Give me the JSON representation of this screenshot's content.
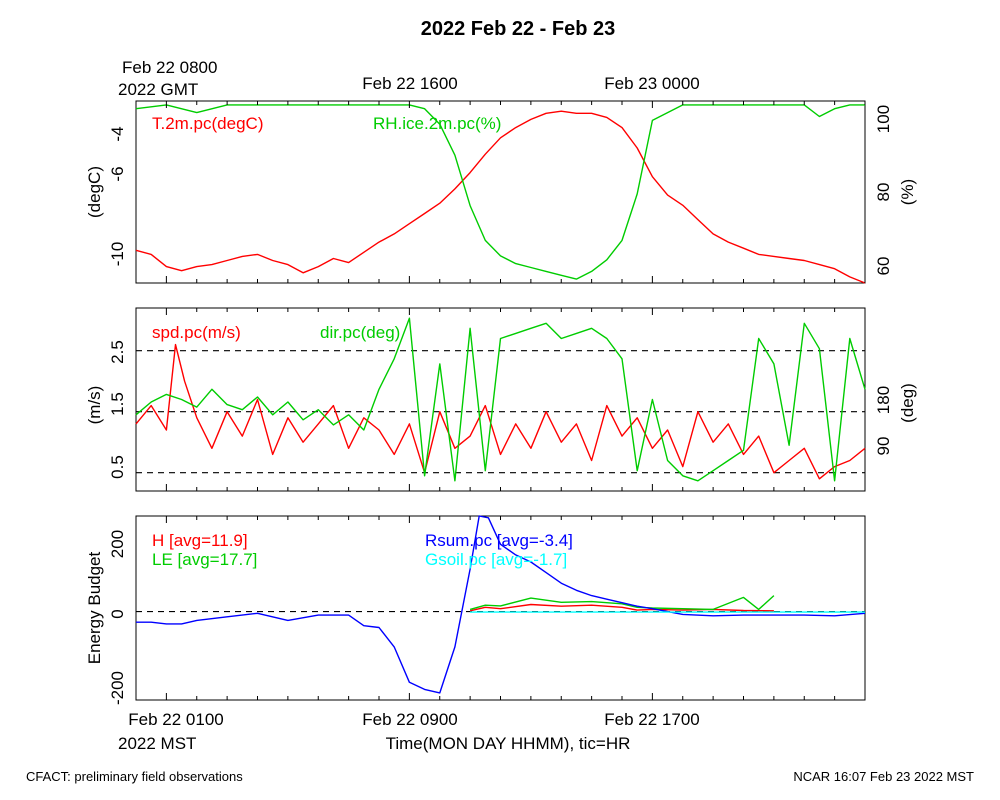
{
  "title": "2022 Feb 22 - Feb 23",
  "top_axis": {
    "first_label_line1": "Feb 22 0800",
    "first_label_line2": "2022 GMT",
    "labels": [
      "Feb 22 1600",
      "Feb 23 0000"
    ]
  },
  "bottom_axis": {
    "first_label_line1": "Feb 22 0100",
    "first_label_line2": "2022 MST",
    "labels": [
      "Feb 22 0900",
      "Feb 22 1700"
    ],
    "xlabel": "Time(MON DAY HHMM), tic=HR"
  },
  "footer": {
    "left": "CFACT: preliminary field observations",
    "right": "NCAR 16:07 Feb 23 2022 MST"
  },
  "colors": {
    "red": "#ff0000",
    "green": "#00cc00",
    "blue": "#0000ff",
    "cyan": "#00ffff",
    "black": "#000000"
  },
  "chart_data": [
    {
      "type": "line",
      "panel": "temperature-humidity",
      "xlim": [
        0,
        24
      ],
      "left_axis": {
        "label": "(degC)",
        "ticks": [
          "-4",
          "-6",
          "-10"
        ],
        "ylim": [
          -11.2,
          -2.3
        ]
      },
      "right_axis": {
        "label": "(%)",
        "ticks": [
          "100",
          "80",
          "60"
        ],
        "ylim": [
          55,
          102
        ]
      },
      "series": [
        {
          "name": "T.2m.pc(degC)",
          "axis": "left",
          "color": "#ff0000",
          "x": [
            0,
            0.5,
            1,
            1.5,
            2,
            2.5,
            3,
            3.5,
            4,
            4.5,
            5,
            5.5,
            6,
            6.5,
            7,
            7.5,
            8,
            8.5,
            9,
            9.5,
            10,
            10.5,
            11,
            11.5,
            12,
            12.5,
            13,
            13.5,
            14,
            14.5,
            15,
            15.5,
            16,
            16.5,
            17,
            17.5,
            18,
            18.5,
            19,
            19.5,
            20,
            20.5,
            21,
            21.5,
            22,
            22.5,
            23,
            23.5,
            24
          ],
          "y": [
            -9.6,
            -9.8,
            -10.4,
            -10.6,
            -10.4,
            -10.3,
            -10.1,
            -9.9,
            -9.8,
            -10.1,
            -10.3,
            -10.7,
            -10.4,
            -10.0,
            -10.2,
            -9.7,
            -9.2,
            -8.8,
            -8.3,
            -7.8,
            -7.3,
            -6.6,
            -5.8,
            -4.9,
            -4.1,
            -3.6,
            -3.2,
            -2.9,
            -2.8,
            -2.9,
            -2.9,
            -3.1,
            -3.6,
            -4.6,
            -6.0,
            -6.9,
            -7.4,
            -8.1,
            -8.8,
            -9.2,
            -9.5,
            -9.8,
            -9.9,
            -10.0,
            -10.1,
            -10.3,
            -10.5,
            -10.9,
            -11.2
          ]
        },
        {
          "name": "RH.ice.2m.pc(%)",
          "axis": "right",
          "color": "#00cc00",
          "x": [
            0,
            1,
            2,
            3,
            4,
            5,
            6,
            7,
            8,
            9,
            9.5,
            10,
            10.5,
            11,
            11.5,
            12,
            12.5,
            13,
            13.5,
            14,
            14.5,
            15,
            15.5,
            16,
            16.5,
            17,
            18,
            19,
            20,
            21,
            22,
            22.5,
            23,
            23.5,
            24
          ],
          "y": [
            100,
            101,
            99,
            101,
            101,
            101,
            101,
            101,
            101,
            101,
            100,
            96,
            88,
            75,
            66,
            62,
            60,
            59,
            58,
            57,
            56,
            58,
            61,
            66,
            78,
            97,
            101,
            101,
            101,
            101,
            101,
            98,
            100,
            101,
            101
          ]
        }
      ]
    },
    {
      "type": "line",
      "panel": "wind",
      "xlim": [
        0,
        24
      ],
      "left_axis": {
        "label": "(m/s)",
        "ticks": [
          "2.5",
          "1.5",
          "0.5"
        ],
        "ylim": [
          0.2,
          3.2
        ]
      },
      "right_axis": {
        "label": "(deg)",
        "ticks": [
          "180",
          "90"
        ],
        "ylim": [
          0,
          360
        ]
      },
      "reference_lines": [
        2.5,
        1.5,
        0.5
      ],
      "series": [
        {
          "name": "spd.pc(m/s)",
          "axis": "left",
          "color": "#ff0000",
          "x": [
            0,
            0.5,
            1,
            1.3,
            1.6,
            2,
            2.5,
            3,
            3.5,
            4,
            4.5,
            5,
            5.5,
            6,
            6.5,
            7,
            7.5,
            8,
            8.5,
            9,
            9.5,
            10,
            10.5,
            11,
            11.5,
            12,
            12.5,
            13,
            13.5,
            14,
            14.5,
            15,
            15.5,
            16,
            16.5,
            17,
            17.5,
            18,
            18.5,
            19,
            19.5,
            20,
            20.5,
            21,
            21.5,
            22,
            22.5,
            23,
            23.5,
            24
          ],
          "y": [
            1.3,
            1.6,
            1.2,
            2.6,
            2.0,
            1.4,
            0.9,
            1.5,
            1.1,
            1.7,
            0.8,
            1.4,
            1.0,
            1.3,
            1.6,
            0.9,
            1.4,
            1.2,
            0.8,
            1.3,
            0.5,
            1.5,
            0.9,
            1.1,
            1.6,
            0.8,
            1.3,
            0.9,
            1.5,
            1.0,
            1.3,
            0.7,
            1.6,
            1.1,
            1.4,
            0.9,
            1.2,
            0.6,
            1.5,
            1.0,
            1.3,
            0.8,
            1.1,
            0.5,
            0.7,
            0.9,
            0.4,
            0.6,
            0.7,
            0.9
          ]
        },
        {
          "name": "dir.pc(deg)",
          "axis": "right",
          "color": "#00cc00",
          "x": [
            0,
            0.5,
            1,
            1.5,
            2,
            2.5,
            3,
            3.5,
            4,
            4.5,
            5,
            5.5,
            6,
            6.5,
            7,
            7.5,
            8,
            8.5,
            9,
            9.5,
            10,
            10.5,
            11,
            11.5,
            12,
            12.5,
            13,
            13.5,
            14,
            14.5,
            15,
            15.5,
            16,
            16.5,
            17,
            17.5,
            18,
            18.5,
            19,
            19.5,
            20,
            20.5,
            21,
            21.5,
            22,
            22.5,
            23,
            23.5,
            24
          ],
          "y": [
            150,
            175,
            190,
            180,
            165,
            200,
            170,
            160,
            185,
            150,
            175,
            140,
            160,
            130,
            150,
            120,
            200,
            260,
            340,
            30,
            250,
            20,
            320,
            40,
            300,
            310,
            320,
            330,
            300,
            310,
            320,
            300,
            260,
            40,
            180,
            60,
            30,
            20,
            40,
            60,
            80,
            300,
            250,
            90,
            330,
            280,
            20,
            300,
            200
          ]
        }
      ]
    },
    {
      "type": "line",
      "panel": "energy-budget",
      "xlim": [
        0,
        24
      ],
      "left_axis": {
        "label": "Energy Budget",
        "ticks": [
          "200",
          "0",
          "-200"
        ],
        "ylim": [
          -250,
          270
        ]
      },
      "reference_lines": [
        0
      ],
      "series": [
        {
          "name": "H [avg=11.9]",
          "color": "#ff0000",
          "x": [
            11,
            11.5,
            12,
            13,
            14,
            15,
            16,
            16.5,
            17,
            18,
            19,
            20,
            21
          ],
          "y": [
            2,
            12,
            8,
            20,
            15,
            18,
            12,
            4,
            6,
            4,
            6,
            3,
            2
          ]
        },
        {
          "name": "LE [avg=17.7]",
          "color": "#00cc00",
          "x": [
            11,
            11.5,
            12,
            13,
            14,
            15,
            16,
            16.5,
            17,
            18,
            19,
            20,
            20.5,
            21
          ],
          "y": [
            6,
            18,
            16,
            38,
            26,
            28,
            22,
            12,
            10,
            8,
            6,
            40,
            6,
            45
          ]
        },
        {
          "name": "Rsum.pc [avg=-3.4]",
          "color": "#0000ff",
          "x": [
            0,
            0.5,
            1,
            1.5,
            2,
            3,
            4,
            5,
            6,
            7,
            7.5,
            8,
            8.5,
            9,
            9.5,
            10,
            10.5,
            11,
            11.3,
            11.6,
            12,
            12.5,
            13,
            13.5,
            14,
            14.5,
            15,
            15.5,
            16,
            16.5,
            17,
            18,
            19,
            20,
            21,
            22,
            23,
            24
          ],
          "y": [
            -30,
            -30,
            -35,
            -35,
            -25,
            -15,
            -5,
            -25,
            -10,
            -10,
            -40,
            -45,
            -100,
            -200,
            -220,
            -230,
            -100,
            120,
            275,
            265,
            190,
            160,
            140,
            110,
            80,
            60,
            45,
            35,
            25,
            15,
            8,
            -8,
            -12,
            -10,
            -10,
            -10,
            -12,
            -5
          ]
        },
        {
          "name": "Gsoil.pc [avg=-1.7]",
          "color": "#00ffff",
          "x": [
            11,
            24
          ],
          "y": [
            -1.7,
            -1.7
          ]
        }
      ]
    }
  ]
}
